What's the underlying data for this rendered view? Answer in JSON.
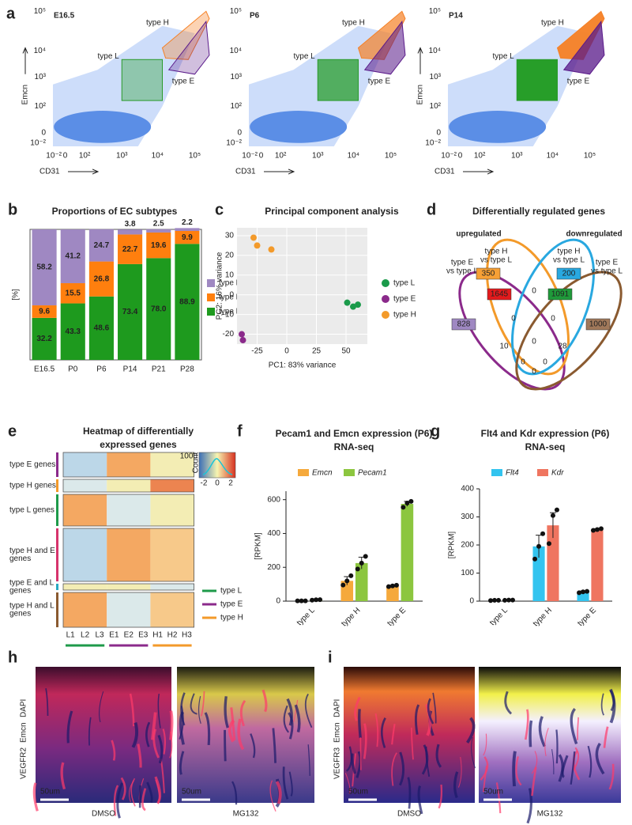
{
  "panel_a": {
    "label": "a",
    "y_label": "Emcn",
    "x_label": "CD31",
    "plots": [
      "E16.5",
      "P6",
      "P14"
    ],
    "gates": {
      "type_h": "type H",
      "type_l": "type L",
      "type_e": "type E"
    },
    "ticks": [
      "10⁻²",
      "0",
      "10²",
      "10³",
      "10⁴",
      "10⁵"
    ]
  },
  "chart_data": [
    {
      "type": "stacked_bar",
      "panel_label": "b",
      "title": "Proportions of EC subtypes",
      "y_label": "[%]",
      "categories": [
        "E16.5",
        "P0",
        "P6",
        "P14",
        "P21",
        "P28"
      ],
      "ylim": [
        0,
        100
      ],
      "legend": "right",
      "series": [
        {
          "name": "type L",
          "color": "#1e9a1e",
          "values": [
            32.2,
            43.3,
            48.6,
            73.4,
            78.0,
            88.9
          ],
          "value_labels": [
            "32.2",
            "43.3",
            "48.6",
            "73.4",
            "78.0",
            "88.9"
          ]
        },
        {
          "name": "type H",
          "color": "#ff7f0e",
          "values": [
            9.6,
            15.5,
            26.8,
            22.7,
            19.6,
            9.9
          ]
        },
        {
          "name": "type E",
          "color": "#9f88c2",
          "values": [
            58.2,
            41.2,
            24.7,
            3.8,
            2.5,
            2.2
          ]
        }
      ]
    },
    {
      "type": "scatter",
      "panel_label": "c",
      "title": "Principal component analysis",
      "x_label": "PC1: 83% variance",
      "y_label": "PC2: 16% variance",
      "xlim": [
        -42,
        68
      ],
      "ylim": [
        -25,
        34
      ],
      "xticks": [
        -25,
        0,
        25,
        50
      ],
      "yticks": [
        -20,
        -10,
        0,
        10,
        20,
        30
      ],
      "grid": true,
      "series": [
        {
          "name": "type L",
          "color": "#1a9a4a",
          "x": [
            51,
            56,
            60
          ],
          "values": [
            -4,
            -6,
            -5
          ]
        },
        {
          "name": "type E",
          "color": "#8b2a8b",
          "x": [
            -38,
            -37
          ],
          "values": [
            -20,
            -23
          ]
        },
        {
          "name": "type H",
          "color": "#f39a2a",
          "x": [
            -28,
            -25,
            -13
          ],
          "values": [
            29,
            25,
            23
          ]
        }
      ]
    },
    {
      "type": "bar_dots",
      "panel_label": "f",
      "title": "Pecam1 and Emcn expression (P6)",
      "subtitle": "RNA-seq",
      "y_label": "[RPKM]",
      "categories": [
        "type L",
        "type H",
        "type E"
      ],
      "ylim": [
        0,
        650
      ],
      "yticks": [
        0,
        200,
        400,
        600
      ],
      "series": [
        {
          "name": "Emcn",
          "color": "#f5a93c",
          "values": [
            2,
            120,
            90
          ],
          "errors": [
            1,
            25,
            4
          ],
          "points": [
            [
              2,
              2,
              2
            ],
            [
              95,
              120,
              150
            ],
            [
              86,
              90,
              94
            ]
          ]
        },
        {
          "name": "Pecam1",
          "color": "#8cc63f",
          "values": [
            8,
            225,
            575
          ],
          "errors": [
            1,
            35,
            15
          ],
          "points": [
            [
              6,
              8,
              9
            ],
            [
              190,
              225,
              265
            ],
            [
              555,
              580,
              590
            ]
          ]
        }
      ]
    },
    {
      "type": "bar_dots",
      "panel_label": "g",
      "title": "Flt4 and Kdr expression (P6)",
      "subtitle": "RNA-seq",
      "y_label": "[RPKM]",
      "categories": [
        "type L",
        "type H",
        "type E"
      ],
      "ylim": [
        0,
        400
      ],
      "yticks": [
        0,
        100,
        200,
        300,
        400
      ],
      "series": [
        {
          "name": "Flt4",
          "color": "#33c4ef",
          "values": [
            3,
            195,
            33
          ],
          "errors": [
            1,
            40,
            3
          ],
          "points": [
            [
              2,
              3,
              3
            ],
            [
              150,
              195,
              240
            ],
            [
              30,
              33,
              35
            ]
          ]
        },
        {
          "name": "Kdr",
          "color": "#ef7560",
          "values": [
            4,
            270,
            255
          ],
          "errors": [
            1,
            45,
            3
          ],
          "points": [
            [
              3,
              4,
              4
            ],
            [
              205,
              305,
              325
            ],
            [
              252,
              255,
              258
            ]
          ]
        }
      ]
    }
  ],
  "panel_d": {
    "label": "d",
    "title": "Differentially regulated genes",
    "upregulated": "upregulated",
    "downregulated": "downregulated",
    "sets": [
      [
        "type E",
        "vs type L"
      ],
      [
        "type H",
        "vs type L"
      ],
      [
        "type H",
        "vs type L"
      ],
      [
        "type E",
        "vs type L"
      ]
    ],
    "counts": [
      350,
      200,
      1645,
      1091,
      828,
      1000,
      0,
      0,
      0,
      0,
      10,
      28,
      0,
      0,
      0
    ]
  },
  "panel_e": {
    "label": "e",
    "title": [
      "Heatmap of differentially",
      "expressed genes"
    ],
    "row_groups": [
      [
        "type E genes"
      ],
      [
        "type H genes"
      ],
      [
        "type L genes"
      ],
      [
        "type H and E",
        "genes"
      ],
      [
        "type E and  L",
        "genes"
      ],
      [
        "type H and L",
        "genes"
      ]
    ],
    "columns": [
      "L1",
      "L2",
      "L3",
      "E1",
      "E2",
      "E3",
      "H1",
      "H2",
      "H3"
    ],
    "legend": [
      "type L",
      "type E",
      "type H"
    ],
    "color_key": {
      "title": "Count",
      "count_tick": 1000,
      "ticks": [
        -2,
        0,
        2
      ]
    }
  },
  "panel_h": {
    "label": "h",
    "stains": [
      "VEGFR2",
      "Emcn",
      "DAPI"
    ],
    "scale_bar": "50um",
    "conditions": [
      "DMSO",
      "MG132"
    ]
  },
  "panel_i": {
    "label": "i",
    "stains": [
      "VEGFR3",
      "Emcn",
      "DAPI"
    ],
    "scale_bar": "50um",
    "conditions": [
      "DMSO",
      "MG132"
    ]
  }
}
